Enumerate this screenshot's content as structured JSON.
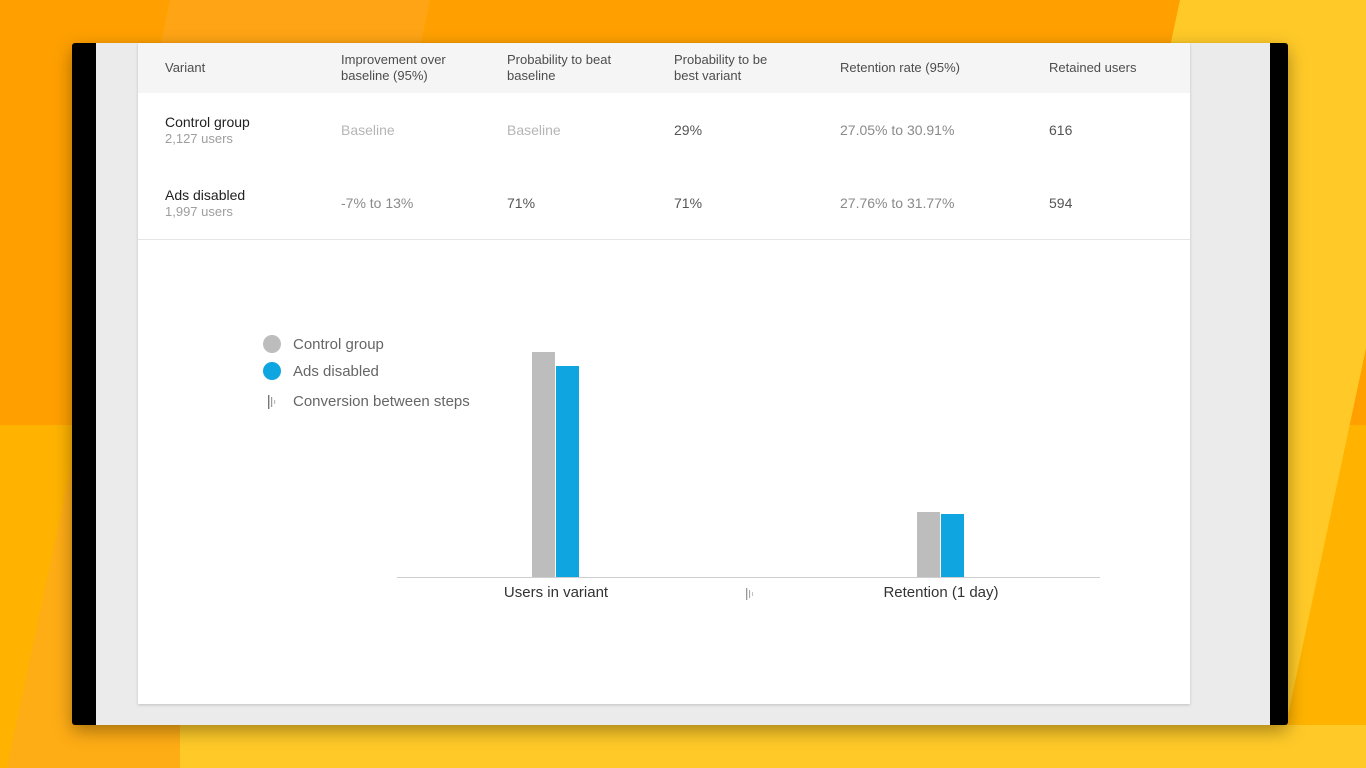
{
  "table": {
    "headers": [
      "Variant",
      "Improvement over baseline (95%)",
      "Probability to beat baseline",
      "Probability to be best variant",
      "Retention rate (95%)",
      "Retained users"
    ],
    "header_lines": [
      [
        "Variant"
      ],
      [
        "Improvement over",
        "baseline (95%)"
      ],
      [
        "Probability to beat",
        "baseline"
      ],
      [
        "Probability to be",
        "best variant"
      ],
      [
        "Retention rate (95%)"
      ],
      [
        "Retained users"
      ]
    ],
    "rows": [
      {
        "name": "Control group",
        "users": "2,127 users",
        "improvement": "Baseline",
        "prob_beat": "Baseline",
        "prob_best": "29%",
        "retention_rate": "27.05% to 30.91%",
        "retained": "616"
      },
      {
        "name": "Ads disabled",
        "users": "1,997 users",
        "improvement": "-7% to 13%",
        "prob_beat": "71%",
        "prob_best": "71%",
        "retention_rate": "27.76% to 31.77%",
        "retained": "594"
      }
    ]
  },
  "legend": {
    "control": "Control group",
    "ads": "Ads disabled",
    "conversion": "Conversion between steps"
  },
  "colors": {
    "control": "#bdbdbd",
    "ads": "#0ea5e0"
  },
  "chart_data": {
    "type": "bar",
    "categories": [
      "Users in variant",
      "Retention (1 day)"
    ],
    "series": [
      {
        "name": "Control group",
        "values": [
          2127,
          616
        ]
      },
      {
        "name": "Ads disabled",
        "values": [
          1997,
          594
        ]
      }
    ],
    "ylim": [
      0,
      2127
    ],
    "grid": false,
    "legend_position": "top-left"
  }
}
